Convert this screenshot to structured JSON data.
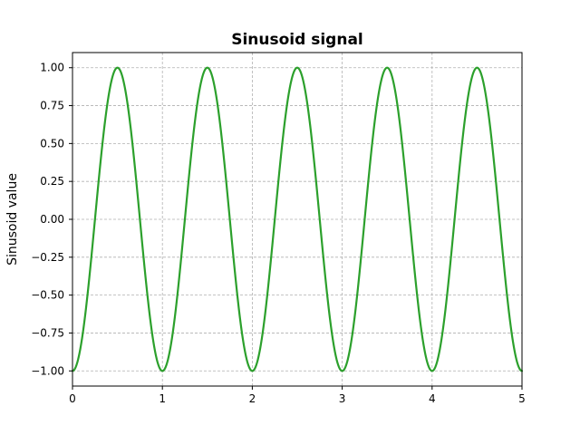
{
  "chart_data": {
    "type": "line",
    "title": "Sinusoid signal",
    "xlabel": "",
    "ylabel": "Sinusoid value",
    "xlim": [
      0,
      5
    ],
    "ylim": [
      -1.1,
      1.1
    ],
    "xticks": [
      0,
      1,
      2,
      3,
      4,
      5
    ],
    "xtick_labels": [
      "0",
      "1",
      "2",
      "3",
      "4",
      "5"
    ],
    "yticks": [
      -1.0,
      -0.75,
      -0.5,
      -0.25,
      0.0,
      0.25,
      0.5,
      0.75,
      1.0
    ],
    "ytick_labels": [
      "−1.00",
      "−0.75",
      "−0.50",
      "−0.25",
      "0.00",
      "0.25",
      "0.50",
      "0.75",
      "1.00"
    ],
    "grid": true,
    "colors": {
      "series": "#2ca02c",
      "grid": "#b0b0b0",
      "axes": "#000000"
    },
    "series": [
      {
        "function": "-cos(2*pi*x)",
        "frequency": 1,
        "amplitude": 1,
        "x": [
          0,
          0.25,
          0.5,
          0.75,
          1,
          1.25,
          1.5,
          1.75,
          2,
          2.25,
          2.5,
          2.75,
          3,
          3.25,
          3.5,
          3.75,
          4,
          4.25,
          4.5,
          4.75,
          5
        ],
        "y": [
          -1,
          0,
          1,
          0,
          -1,
          0,
          1,
          0,
          -1,
          0,
          1,
          0,
          -1,
          0,
          1,
          0,
          -1,
          0,
          1,
          0,
          -1
        ]
      }
    ]
  }
}
